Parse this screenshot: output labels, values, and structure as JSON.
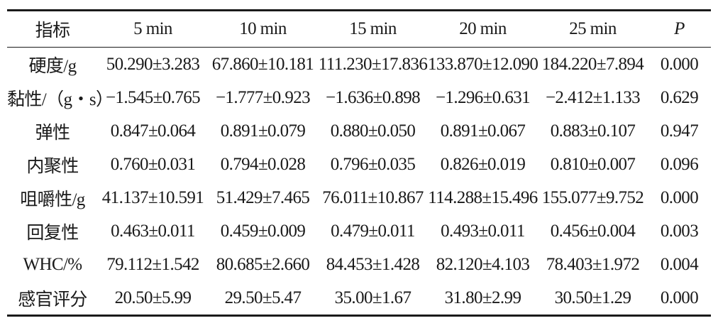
{
  "chart_data": {
    "type": "table",
    "columns": [
      "指标",
      "5 min",
      "10 min",
      "15 min",
      "20 min",
      "25 min",
      "P"
    ],
    "rows": [
      [
        "硬度/g",
        "50.290±3.283",
        "67.860±10.181",
        "111.230±17.836",
        "133.870±12.090",
        "184.220±7.894",
        "0.000"
      ],
      [
        "黏性/（g・s）",
        "−1.545±0.765",
        "−1.777±0.923",
        "−1.636±0.898",
        "−1.296±0.631",
        "−2.412±1.133",
        "0.629"
      ],
      [
        "弹性",
        "0.847±0.064",
        "0.891±0.079",
        "0.880±0.050",
        "0.891±0.067",
        "0.883±0.107",
        "0.947"
      ],
      [
        "内聚性",
        "0.760±0.031",
        "0.794±0.028",
        "0.796±0.035",
        "0.826±0.019",
        "0.810±0.007",
        "0.096"
      ],
      [
        "咀嚼性/g",
        "41.137±10.591",
        "51.429±7.465",
        "76.011±10.867",
        "114.288±15.496",
        "155.077±9.752",
        "0.000"
      ],
      [
        "回复性",
        "0.463±0.011",
        "0.459±0.009",
        "0.479±0.011",
        "0.493±0.011",
        "0.456±0.004",
        "0.003"
      ],
      [
        "WHC/%",
        "79.112±1.542",
        "80.685±2.660",
        "84.453±1.428",
        "82.120±4.103",
        "78.403±1.972",
        "0.004"
      ],
      [
        "感官评分",
        "20.50±5.99",
        "29.50±5.47",
        "35.00±1.67",
        "31.80±2.99",
        "30.50±1.29",
        "0.000"
      ]
    ]
  }
}
